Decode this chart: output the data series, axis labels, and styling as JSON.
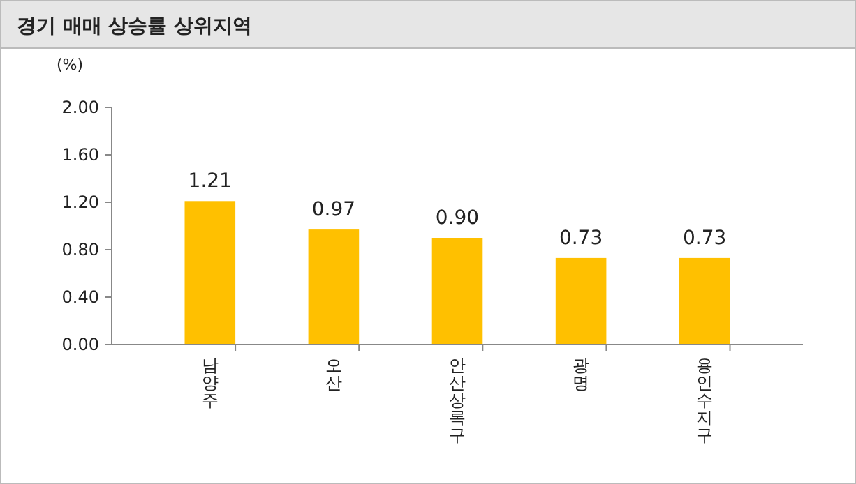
{
  "chart_data": {
    "type": "bar",
    "title": "경기 매매 상승률 상위지역",
    "ylabel": "(%)",
    "categories": [
      "남양주",
      "오산",
      "안산상록구",
      "광명",
      "용인수지구"
    ],
    "values": [
      1.21,
      0.97,
      0.9,
      0.73,
      0.73
    ],
    "color": "#ffc000",
    "ylim": [
      0,
      2
    ],
    "yticks": [
      {
        "value": 0,
        "label": "0.00"
      },
      {
        "value": 0.4,
        "label": "0.40"
      },
      {
        "value": 0.8,
        "label": "0.80"
      },
      {
        "value": 1.2,
        "label": "1.20"
      },
      {
        "value": 1.6,
        "label": "1.60"
      },
      {
        "value": 2,
        "label": "2.00"
      }
    ],
    "value_labels": [
      "1.21",
      "0.97",
      "0.90",
      "0.73",
      "0.73"
    ],
    "grid": false
  }
}
